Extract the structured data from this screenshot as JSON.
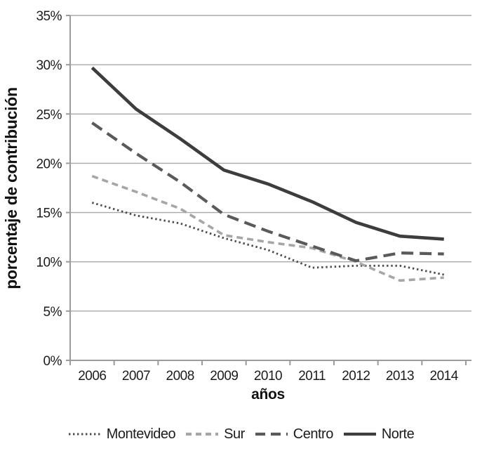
{
  "chart_data": {
    "type": "line",
    "title": "",
    "xlabel": "años",
    "ylabel": "porcentaje de contribución",
    "x": [
      2006,
      2007,
      2008,
      2009,
      2010,
      2011,
      2012,
      2013,
      2014
    ],
    "y_ticks": [
      "0%",
      "5%",
      "10%",
      "15%",
      "20%",
      "25%",
      "30%",
      "35%"
    ],
    "ylim": [
      0,
      35
    ],
    "grid": true,
    "legend_position": "bottom",
    "series": [
      {
        "name": "Montevideo",
        "style": "dotted",
        "color": "#4c4c4c",
        "values": [
          16.0,
          14.7,
          13.9,
          12.4,
          11.2,
          9.4,
          9.6,
          9.6,
          8.7
        ]
      },
      {
        "name": "Sur",
        "style": "dashed-short",
        "color": "#a6a6a6",
        "values": [
          18.7,
          17.1,
          15.4,
          12.7,
          12.0,
          11.4,
          10.0,
          8.1,
          8.4
        ]
      },
      {
        "name": "Centro",
        "style": "dashed-long",
        "color": "#5a5a5a",
        "values": [
          24.1,
          21.0,
          18.1,
          14.8,
          13.1,
          11.6,
          10.1,
          10.9,
          10.8
        ]
      },
      {
        "name": "Norte",
        "style": "solid",
        "color": "#3d3d3d",
        "values": [
          29.7,
          25.5,
          22.5,
          19.3,
          17.9,
          16.1,
          14.0,
          12.6,
          12.3
        ]
      }
    ],
    "axis_color": "#9b9b9b",
    "grid_color": "#a8a8a8",
    "text_color": "#1c1c1c"
  }
}
